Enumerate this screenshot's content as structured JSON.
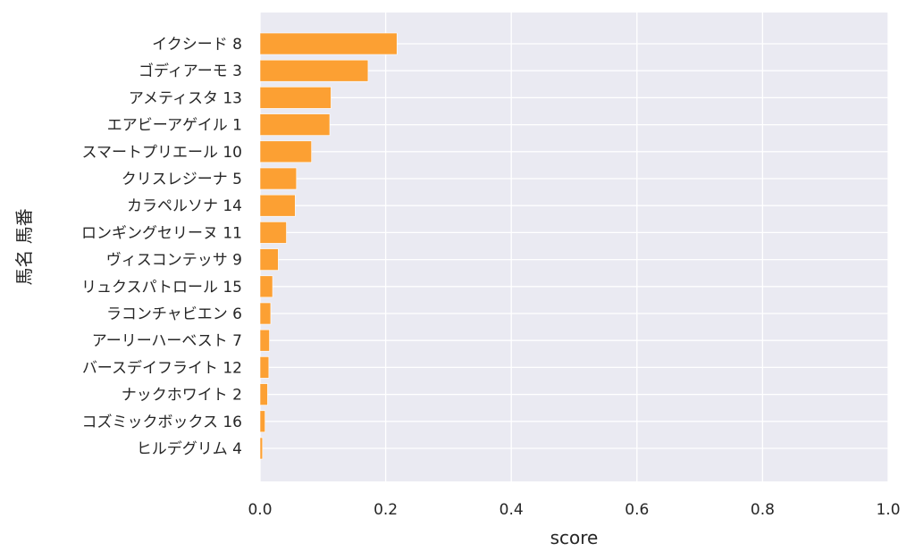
{
  "chart_data": {
    "type": "bar",
    "orientation": "horizontal",
    "title": "",
    "xlabel": "score",
    "ylabel": "馬名 馬番",
    "xlim": [
      0,
      1.0
    ],
    "xticks": [
      "0.0",
      "0.2",
      "0.4",
      "0.6",
      "0.8",
      "1.0"
    ],
    "grid": true,
    "bar_color": "#fca033",
    "background_color": "#eaeaf2",
    "categories": [
      "イクシード 8",
      "ゴディアーモ 3",
      "アメティスタ 13",
      "エアビーアゲイル 1",
      "スマートプリエール 10",
      "クリスレジーナ 5",
      "カラペルソナ 14",
      "ロンギングセリーヌ 11",
      "ヴィスコンテッサ 9",
      "リュクスパトロール 15",
      "ラコンチャビエン 6",
      "アーリーハーベスト 7",
      "バースデイフライト 12",
      "ナックホワイト 2",
      "コズミックボックス 16",
      "ヒルデグリム 4"
    ],
    "values": [
      0.218,
      0.172,
      0.113,
      0.111,
      0.082,
      0.058,
      0.056,
      0.042,
      0.029,
      0.02,
      0.017,
      0.015,
      0.014,
      0.012,
      0.008,
      0.004
    ]
  }
}
